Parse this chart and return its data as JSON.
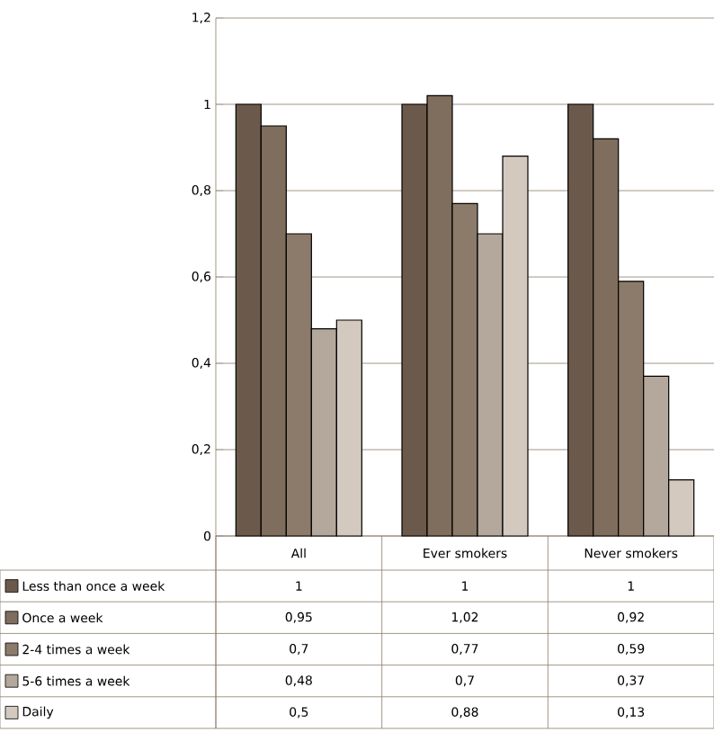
{
  "chart_data": {
    "type": "bar",
    "categories": [
      "All",
      "Ever smokers",
      "Never smokers"
    ],
    "series": [
      {
        "name": "Less than once a week",
        "color": "#6b5a4b",
        "values": [
          1,
          1,
          1
        ],
        "value_labels": [
          "1",
          "1",
          "1"
        ]
      },
      {
        "name": "Once a week",
        "color": "#7f6d5d",
        "values": [
          0.95,
          1.02,
          0.92
        ],
        "value_labels": [
          "0,95",
          "1,02",
          "0,92"
        ]
      },
      {
        "name": "2-4 times a week",
        "color": "#8c7b6a",
        "values": [
          0.7,
          0.77,
          0.59
        ],
        "value_labels": [
          "0,7",
          "0,77",
          "0,59"
        ]
      },
      {
        "name": "5-6 times a week",
        "color": "#b3a89b",
        "values": [
          0.48,
          0.7,
          0.37
        ],
        "value_labels": [
          "0,48",
          "0,7",
          "0,37"
        ]
      },
      {
        "name": "Daily",
        "color": "#d3c9bf",
        "values": [
          0.5,
          0.88,
          0.13
        ],
        "value_labels": [
          "0,5",
          "0,88",
          "0,13"
        ]
      }
    ],
    "ylim": [
      0,
      1.2
    ],
    "yticks": [
      0,
      {
        "value": 0.2,
        "label": "0,2"
      },
      {
        "value": 0.4,
        "label": "0,4"
      },
      {
        "value": 0.6,
        "label": "0,6"
      },
      {
        "value": 0.8,
        "label": "0,8"
      },
      1,
      {
        "value": 1.2,
        "label": "1,2"
      }
    ],
    "grid": "y",
    "legend": "bottom"
  }
}
